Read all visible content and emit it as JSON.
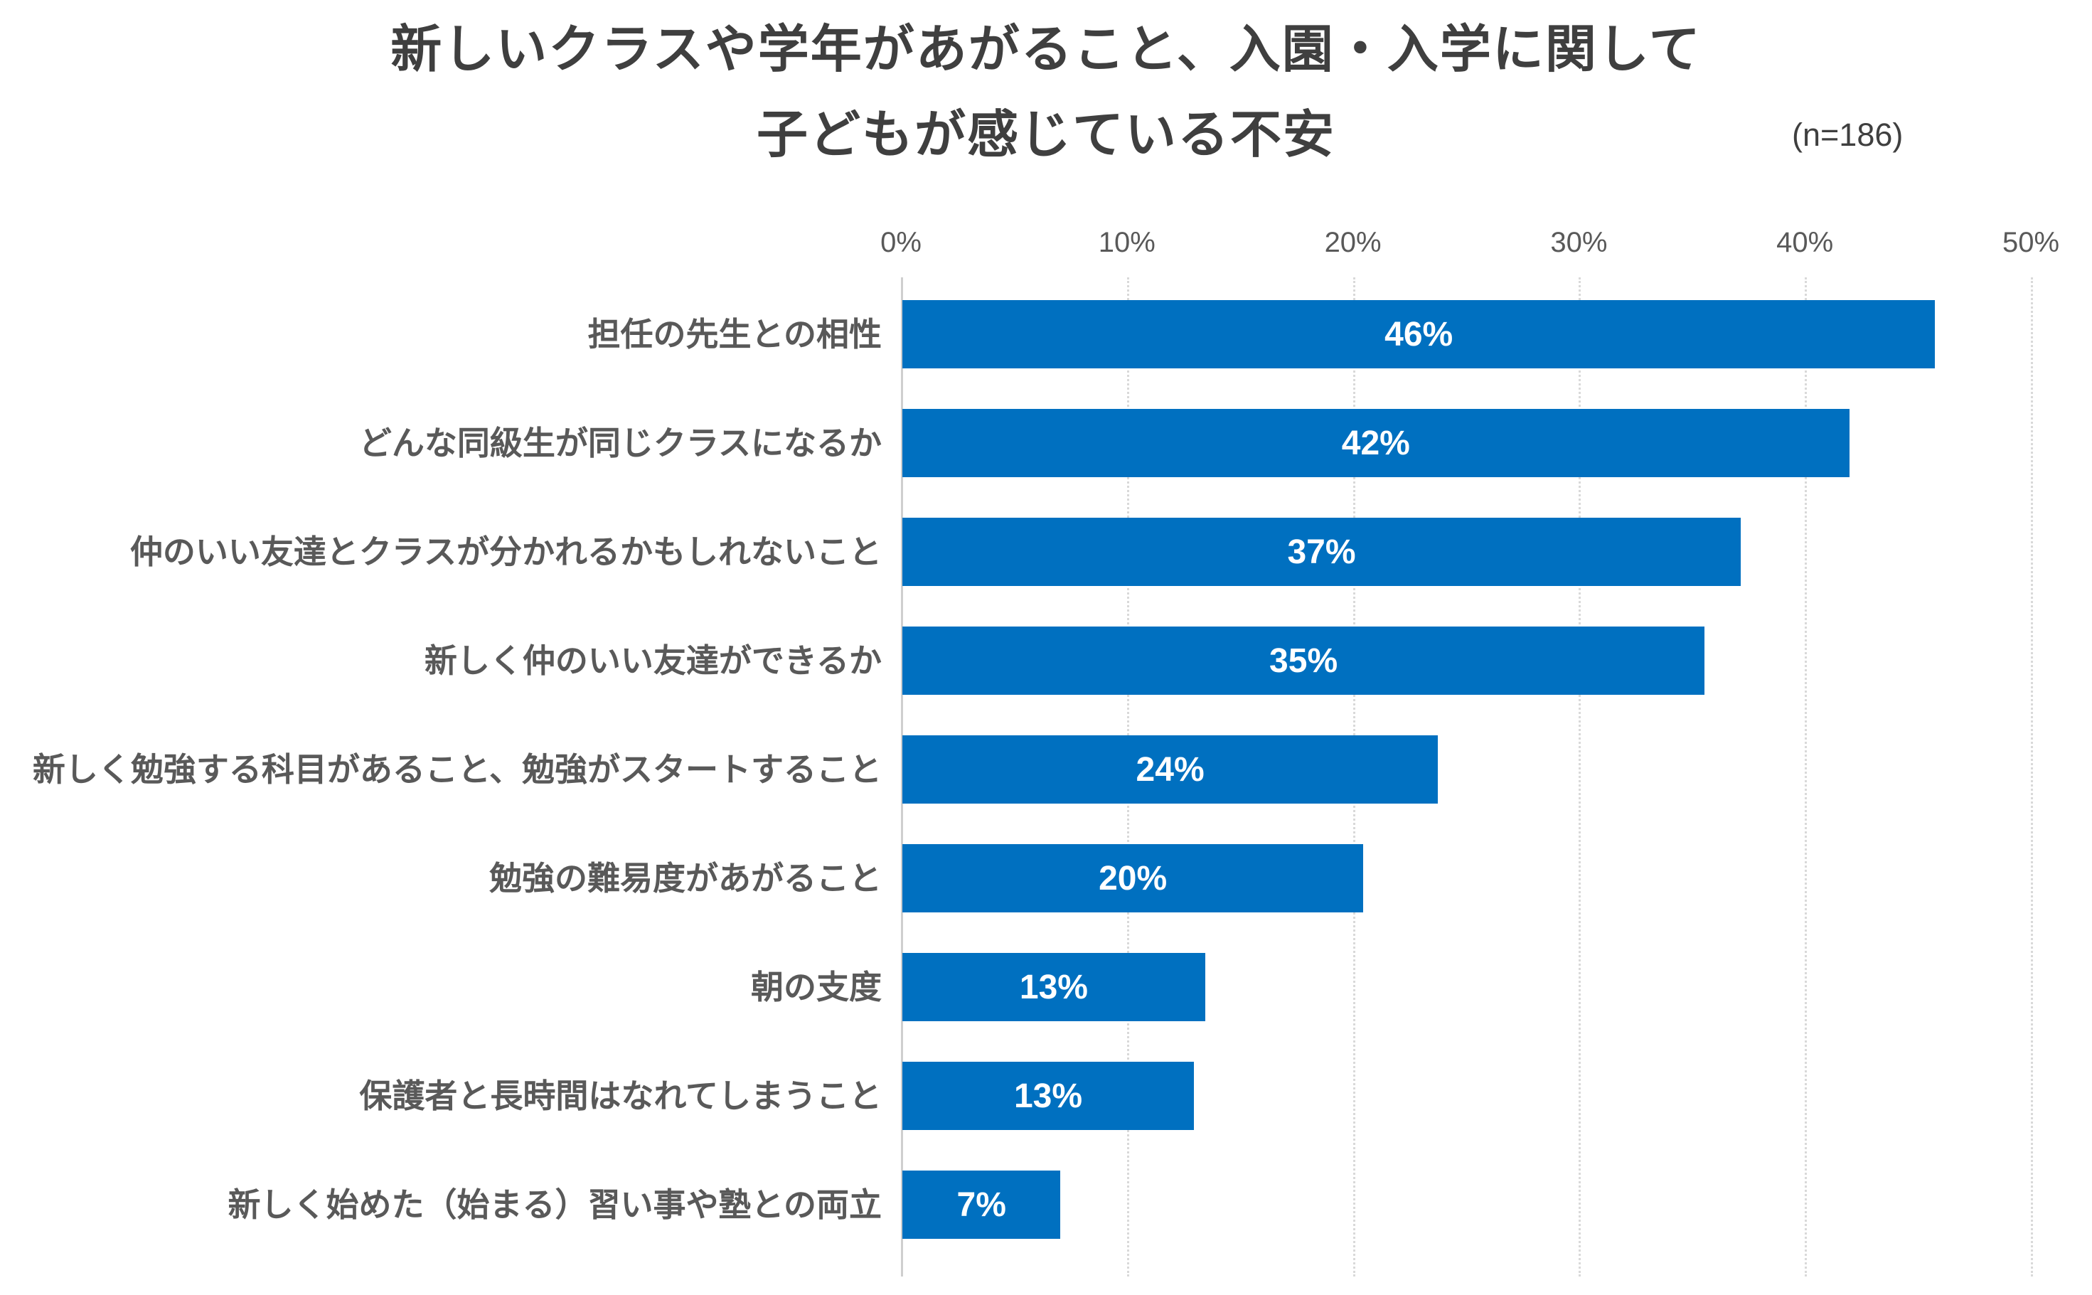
{
  "title": {
    "line1": "新しいクラスや学年があがること、入園・入学に関して",
    "line2": "子どもが感じている不安",
    "sample_size": "(n=186)"
  },
  "colors": {
    "bar": "#0070C0",
    "bar_label": "#ffffff",
    "axis_text": "#595959",
    "title_text": "#3f3f3f",
    "gridline": "#d9d9d9"
  },
  "chart_data": {
    "type": "bar",
    "orientation": "horizontal",
    "title": "新しいクラスや学年があがること、入園・入学に関して 子どもが感じている不安",
    "sample_size_label": "(n=186)",
    "categories": [
      "担任の先生との相性",
      "どんな同級生が同じクラスになるか",
      "仲のいい友達とクラスが分かれるかもしれないこと",
      "新しく仲のいい友達ができるか",
      "新しく勉強する科目があること、勉強がスタートすること",
      "勉強の難易度があがること",
      "朝の支度",
      "保護者と長時間はなれてしまうこと",
      "新しく始めた（始まる）習い事や塾との両立"
    ],
    "values": [
      46,
      42,
      37,
      35,
      24,
      20,
      13,
      13,
      7
    ],
    "value_labels": [
      "46%",
      "42%",
      "37%",
      "35%",
      "24%",
      "20%",
      "13%",
      "13%",
      "7%"
    ],
    "bar_length_pct": [
      45.7,
      41.9,
      37.1,
      35.5,
      23.7,
      20.4,
      13.4,
      12.9,
      7.0
    ],
    "xlabel": "",
    "ylabel": "",
    "xlim": [
      0,
      50
    ],
    "x_ticks": [
      "0%",
      "10%",
      "20%",
      "30%",
      "40%",
      "50%"
    ],
    "grid": "vertical-dotted",
    "legend": "none"
  }
}
